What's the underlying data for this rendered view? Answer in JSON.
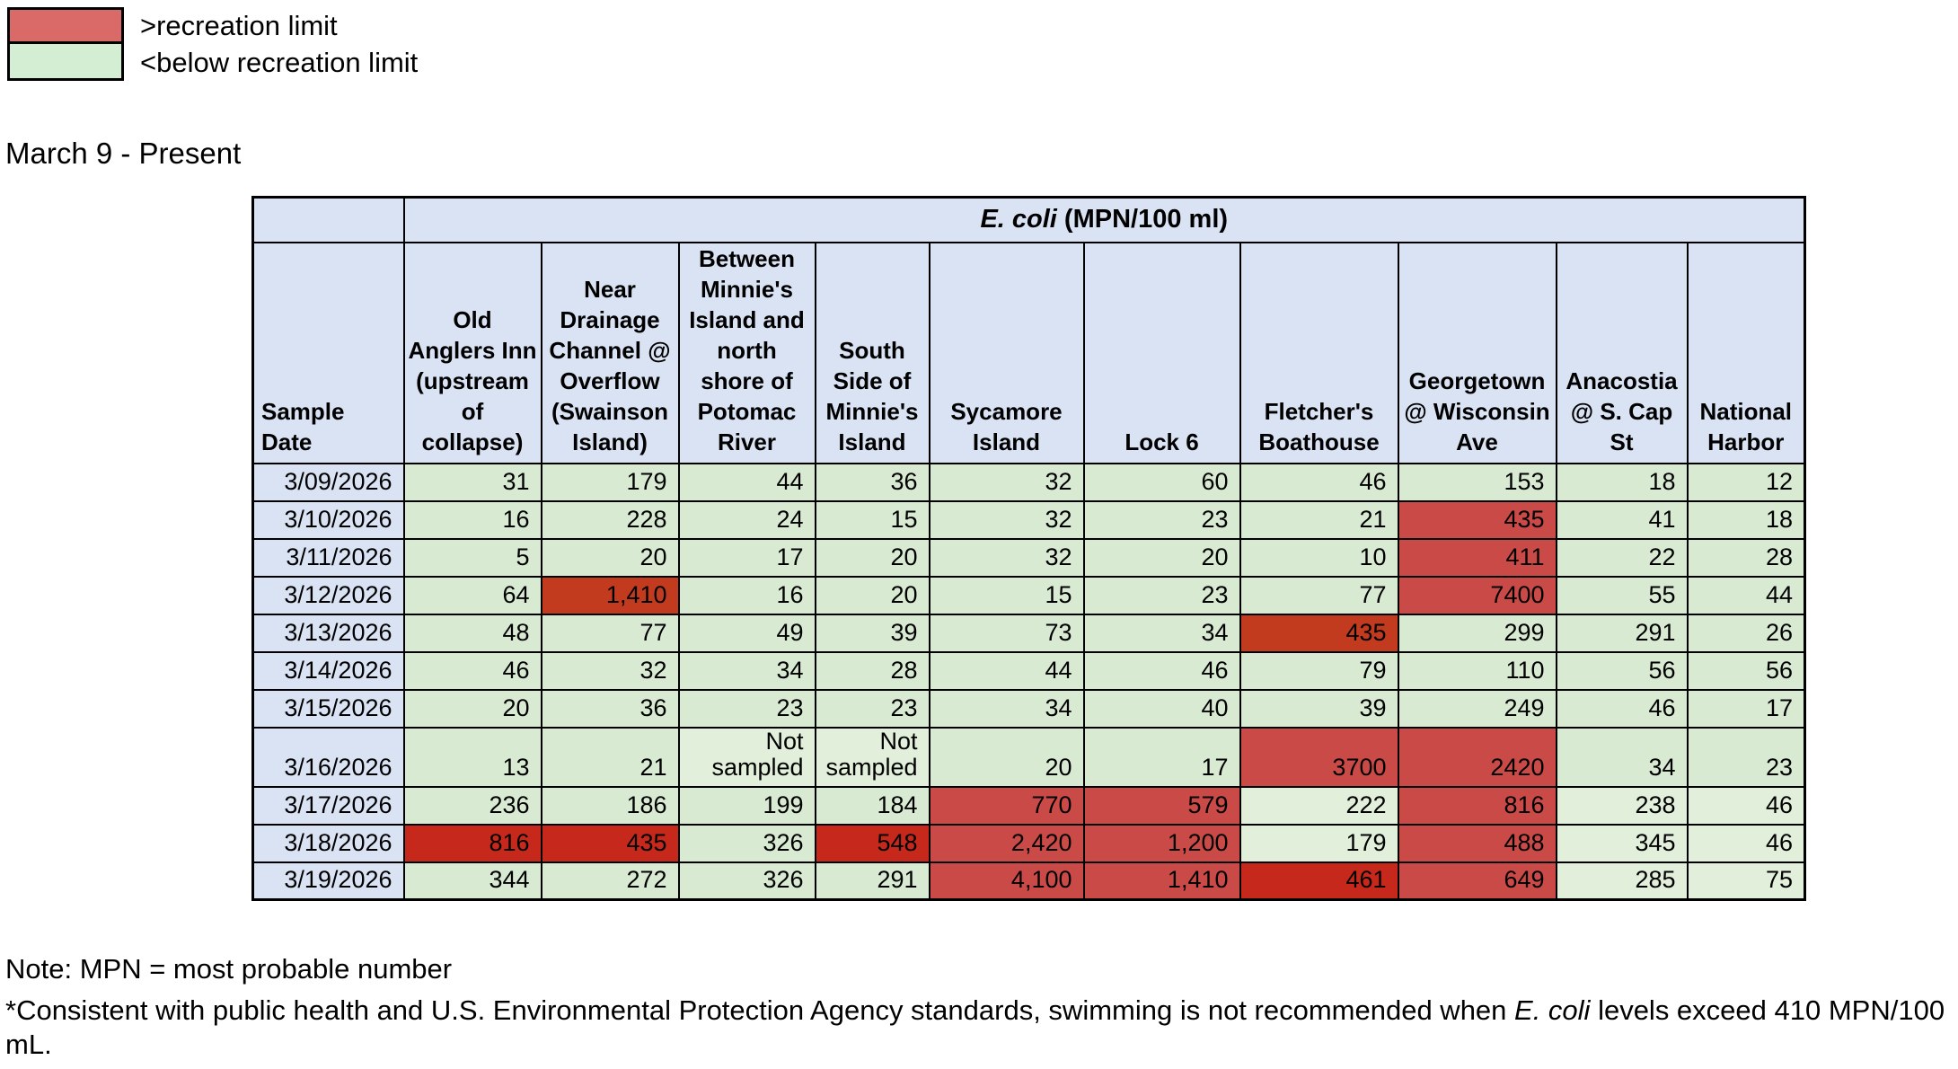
{
  "legend": {
    "items": [
      {
        "label": ">recreation limit",
        "color": "#d96a67"
      },
      {
        "label": "<below recreation limit",
        "color": "#d3eed3"
      }
    ]
  },
  "title": "March 9 - Present",
  "colors": {
    "g": "#d9ead3",
    "g2": "#e2efda",
    "r1": "#ca4a47",
    "r2": "#c23b1e",
    "r3": "#c7281c",
    "header_blue": "#dae3f3"
  },
  "table": {
    "unit_italic": "E. coli",
    "unit_rest": " (MPN/100 ml)",
    "date_col_header": "Sample Date",
    "columns": [
      "Old Anglers Inn (upstream of collapse)",
      "Near Drainage Channel @ Overflow (Swainson Island)",
      "Between Minnie's Island and north shore of Potomac River",
      "South Side of Minnie's Island",
      "Sycamore Island",
      "Lock 6",
      "Fletcher's Boathouse",
      "Georgetown @ Wisconsin Ave",
      "Anacostia @ S. Cap St",
      "National Harbor"
    ],
    "rows": [
      {
        "date": "3/09/2026",
        "cells": [
          {
            "v": "31",
            "f": "g"
          },
          {
            "v": "179",
            "f": "g"
          },
          {
            "v": "44",
            "f": "g"
          },
          {
            "v": "36",
            "f": "g"
          },
          {
            "v": "32",
            "f": "g"
          },
          {
            "v": "60",
            "f": "g"
          },
          {
            "v": "46",
            "f": "g"
          },
          {
            "v": "153",
            "f": "g"
          },
          {
            "v": "18",
            "f": "g"
          },
          {
            "v": "12",
            "f": "g"
          }
        ]
      },
      {
        "date": "3/10/2026",
        "cells": [
          {
            "v": "16",
            "f": "g"
          },
          {
            "v": "228",
            "f": "g"
          },
          {
            "v": "24",
            "f": "g"
          },
          {
            "v": "15",
            "f": "g"
          },
          {
            "v": "32",
            "f": "g"
          },
          {
            "v": "23",
            "f": "g"
          },
          {
            "v": "21",
            "f": "g"
          },
          {
            "v": "435",
            "f": "r1"
          },
          {
            "v": "41",
            "f": "g"
          },
          {
            "v": "18",
            "f": "g"
          }
        ]
      },
      {
        "date": "3/11/2026",
        "cells": [
          {
            "v": "5",
            "f": "g"
          },
          {
            "v": "20",
            "f": "g"
          },
          {
            "v": "17",
            "f": "g"
          },
          {
            "v": "20",
            "f": "g"
          },
          {
            "v": "32",
            "f": "g"
          },
          {
            "v": "20",
            "f": "g"
          },
          {
            "v": "10",
            "f": "g"
          },
          {
            "v": "411",
            "f": "r1"
          },
          {
            "v": "22",
            "f": "g"
          },
          {
            "v": "28",
            "f": "g"
          }
        ]
      },
      {
        "date": "3/12/2026",
        "cells": [
          {
            "v": "64",
            "f": "g"
          },
          {
            "v": "1,410",
            "f": "r2"
          },
          {
            "v": "16",
            "f": "g"
          },
          {
            "v": "20",
            "f": "g"
          },
          {
            "v": "15",
            "f": "g"
          },
          {
            "v": "23",
            "f": "g"
          },
          {
            "v": "77",
            "f": "g"
          },
          {
            "v": "7400",
            "f": "r1"
          },
          {
            "v": "55",
            "f": "g"
          },
          {
            "v": "44",
            "f": "g"
          }
        ]
      },
      {
        "date": "3/13/2026",
        "cells": [
          {
            "v": "48",
            "f": "g"
          },
          {
            "v": "77",
            "f": "g"
          },
          {
            "v": "49",
            "f": "g"
          },
          {
            "v": "39",
            "f": "g"
          },
          {
            "v": "73",
            "f": "g"
          },
          {
            "v": "34",
            "f": "g"
          },
          {
            "v": "435",
            "f": "r2"
          },
          {
            "v": "299",
            "f": "g"
          },
          {
            "v": "291",
            "f": "g"
          },
          {
            "v": "26",
            "f": "g"
          }
        ]
      },
      {
        "date": "3/14/2026",
        "cells": [
          {
            "v": "46",
            "f": "g"
          },
          {
            "v": "32",
            "f": "g"
          },
          {
            "v": "34",
            "f": "g"
          },
          {
            "v": "28",
            "f": "g"
          },
          {
            "v": "44",
            "f": "g"
          },
          {
            "v": "46",
            "f": "g"
          },
          {
            "v": "79",
            "f": "g"
          },
          {
            "v": "110",
            "f": "g"
          },
          {
            "v": "56",
            "f": "g"
          },
          {
            "v": "56",
            "f": "g"
          }
        ]
      },
      {
        "date": "3/15/2026",
        "cells": [
          {
            "v": "20",
            "f": "g"
          },
          {
            "v": "36",
            "f": "g"
          },
          {
            "v": "23",
            "f": "g"
          },
          {
            "v": "23",
            "f": "g"
          },
          {
            "v": "34",
            "f": "g"
          },
          {
            "v": "40",
            "f": "g"
          },
          {
            "v": "39",
            "f": "g"
          },
          {
            "v": "249",
            "f": "g"
          },
          {
            "v": "46",
            "f": "g"
          },
          {
            "v": "17",
            "f": "g"
          }
        ]
      },
      {
        "date": "3/16/2026",
        "cells": [
          {
            "v": "13",
            "f": "g"
          },
          {
            "v": "21",
            "f": "g"
          },
          {
            "v": "Not sampled",
            "f": "g2"
          },
          {
            "v": "Not sampled",
            "f": "g2"
          },
          {
            "v": "20",
            "f": "g"
          },
          {
            "v": "17",
            "f": "g"
          },
          {
            "v": "3700",
            "f": "r1"
          },
          {
            "v": "2420",
            "f": "r1"
          },
          {
            "v": "34",
            "f": "g"
          },
          {
            "v": "23",
            "f": "g"
          }
        ]
      },
      {
        "date": "3/17/2026",
        "cells": [
          {
            "v": "236",
            "f": "g"
          },
          {
            "v": "186",
            "f": "g"
          },
          {
            "v": "199",
            "f": "g"
          },
          {
            "v": "184",
            "f": "g"
          },
          {
            "v": "770",
            "f": "r1"
          },
          {
            "v": "579",
            "f": "r1"
          },
          {
            "v": "222",
            "f": "g2"
          },
          {
            "v": "816",
            "f": "r1"
          },
          {
            "v": "238",
            "f": "g2"
          },
          {
            "v": "46",
            "f": "g2"
          }
        ]
      },
      {
        "date": "3/18/2026",
        "cells": [
          {
            "v": "816",
            "f": "r3"
          },
          {
            "v": "435",
            "f": "r3"
          },
          {
            "v": "326",
            "f": "g"
          },
          {
            "v": "548",
            "f": "r3"
          },
          {
            "v": "2,420",
            "f": "r1"
          },
          {
            "v": "1,200",
            "f": "r1"
          },
          {
            "v": "179",
            "f": "g2"
          },
          {
            "v": "488",
            "f": "r1"
          },
          {
            "v": "345",
            "f": "g2"
          },
          {
            "v": "46",
            "f": "g2"
          }
        ]
      },
      {
        "date": "3/19/2026",
        "cells": [
          {
            "v": "344",
            "f": "g"
          },
          {
            "v": "272",
            "f": "g"
          },
          {
            "v": "326",
            "f": "g"
          },
          {
            "v": "291",
            "f": "g"
          },
          {
            "v": "4,100",
            "f": "r1"
          },
          {
            "v": "1,410",
            "f": "r1"
          },
          {
            "v": "461",
            "f": "r3"
          },
          {
            "v": "649",
            "f": "r1"
          },
          {
            "v": "285",
            "f": "g2"
          },
          {
            "v": "75",
            "f": "g2"
          }
        ]
      }
    ]
  },
  "notes": {
    "line1": "Note: MPN = most probable number",
    "line2_pre": "*Consistent with public health and U.S. Environmental Protection Agency standards, swimming is not recommended when ",
    "line2_italic": "E. coli",
    "line2_post": " levels exceed 410 MPN/100 mL."
  }
}
